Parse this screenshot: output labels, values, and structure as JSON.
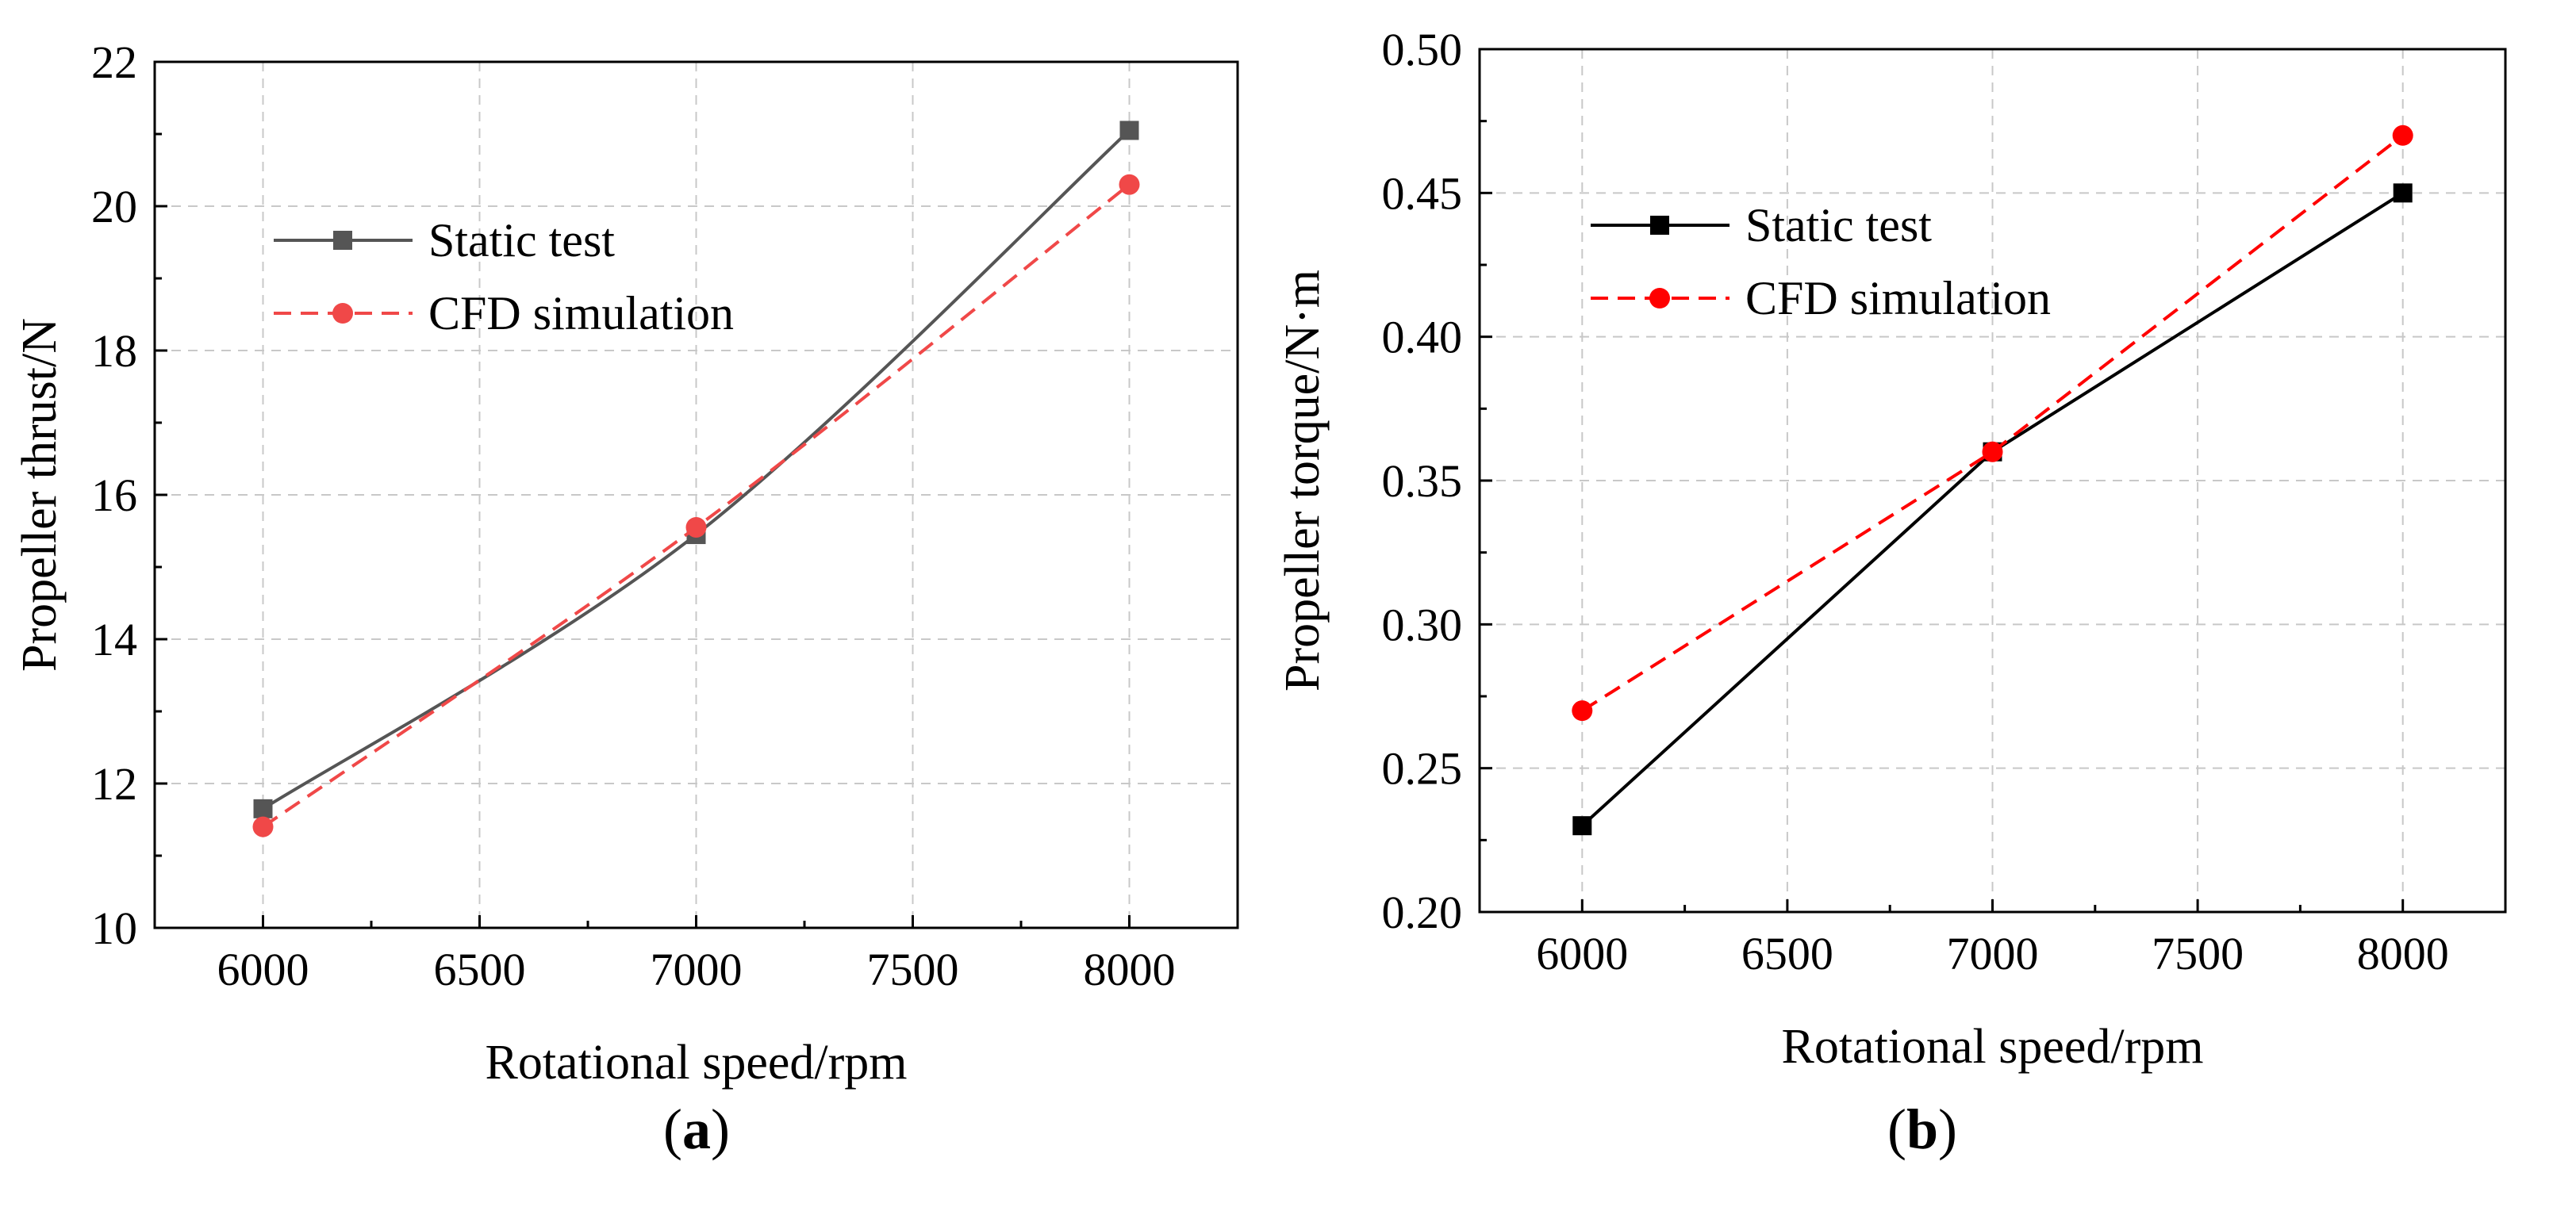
{
  "chart_data": [
    {
      "type": "line",
      "panel_label": "(a)",
      "panel_letter": "a",
      "xlabel": "Rotational speed/rpm",
      "ylabel": "Propeller thrust/N",
      "xlim": [
        5750,
        8250
      ],
      "ylim": [
        10,
        22
      ],
      "xticks": [
        6000,
        6500,
        7000,
        7500,
        8000
      ],
      "yticks": [
        10,
        12,
        14,
        16,
        18,
        20,
        22
      ],
      "grid": true,
      "legend_position": "upper-left",
      "series": [
        {
          "name": "Static test",
          "color": "#555555",
          "marker": "square",
          "dash": "solid",
          "smooth": true,
          "x": [
            6000,
            7000,
            8000
          ],
          "y": [
            11.65,
            15.45,
            21.05
          ]
        },
        {
          "name": "CFD simulation",
          "color": "#f04848",
          "marker": "circle",
          "dash": "dashed",
          "smooth": true,
          "x": [
            6000,
            7000,
            8000
          ],
          "y": [
            11.4,
            15.55,
            20.3
          ]
        }
      ]
    },
    {
      "type": "line",
      "panel_label": "(b)",
      "panel_letter": "b",
      "xlabel": "Rotational speed/rpm",
      "ylabel": "Propeller torque/N·m",
      "xlim": [
        5750,
        8250
      ],
      "ylim": [
        0.2,
        0.5
      ],
      "xticks": [
        6000,
        6500,
        7000,
        7500,
        8000
      ],
      "yticks": [
        0.2,
        0.25,
        0.3,
        0.35,
        0.4,
        0.45,
        0.5
      ],
      "ytick_labels": [
        "0.20",
        "0.25",
        "0.30",
        "0.35",
        "0.40",
        "0.45",
        "0.50"
      ],
      "grid": true,
      "legend_position": "upper-left",
      "series": [
        {
          "name": "Static test",
          "color": "#000000",
          "marker": "square",
          "dash": "solid",
          "smooth": false,
          "x": [
            6000,
            7000,
            8000
          ],
          "y": [
            0.23,
            0.36,
            0.45
          ]
        },
        {
          "name": "CFD simulation",
          "color": "#ff0000",
          "marker": "circle",
          "dash": "dashed",
          "smooth": false,
          "x": [
            6000,
            7000,
            8000
          ],
          "y": [
            0.27,
            0.36,
            0.47
          ]
        }
      ]
    }
  ]
}
